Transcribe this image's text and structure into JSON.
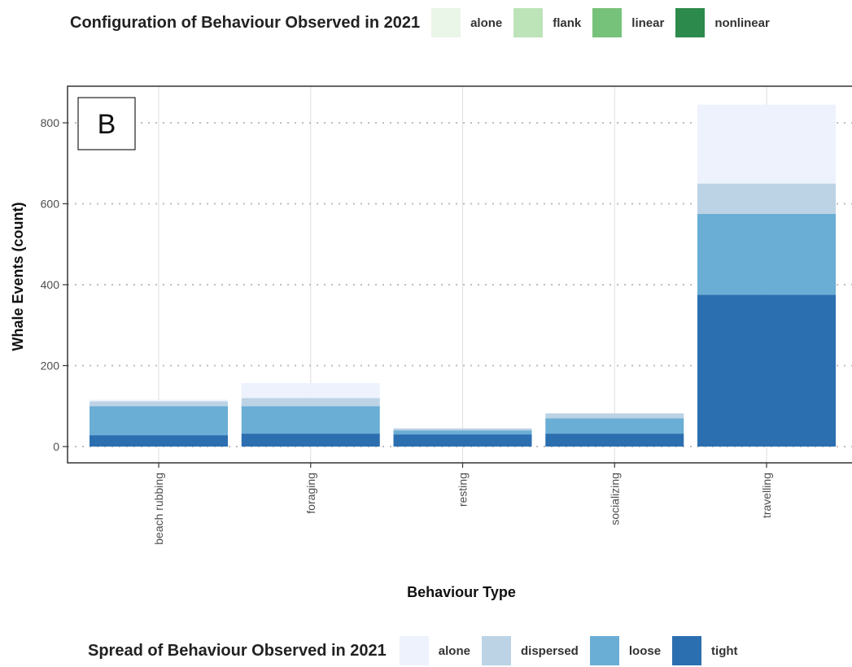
{
  "chart_data": {
    "type": "bar",
    "stacked": true,
    "panel_label": "B",
    "xlabel": "Behaviour Type",
    "ylabel": "Whale Events (count)",
    "categories": [
      "beach rubbing",
      "foraging",
      "resting",
      "socializing",
      "travelling"
    ],
    "ylim": [
      -40,
      885
    ],
    "yticks": [
      0,
      200,
      400,
      600,
      800
    ],
    "grid": true,
    "legend_placement": "bottom",
    "series": [
      {
        "name": "tight",
        "color": "#2b6fb0",
        "values": [
          28,
          32,
          30,
          32,
          375
        ]
      },
      {
        "name": "loose",
        "color": "#6aadd5",
        "values": [
          72,
          68,
          10,
          38,
          200
        ]
      },
      {
        "name": "dispersed",
        "color": "#bcd3e5",
        "values": [
          12,
          20,
          5,
          12,
          75
        ]
      },
      {
        "name": "alone",
        "color": "#edf2fd",
        "values": [
          4,
          37,
          0,
          0,
          195
        ]
      }
    ]
  },
  "legend_config": {
    "title": "Configuration of Behaviour Observed in 2021",
    "items": [
      {
        "label": "alone",
        "color": "#eaf6e7"
      },
      {
        "label": "flank",
        "color": "#bde3b9"
      },
      {
        "label": "linear",
        "color": "#77c27b"
      },
      {
        "label": "nonlinear",
        "color": "#2c8a4c"
      }
    ]
  },
  "legend_spread": {
    "title": "Spread of Behaviour Observed in 2021",
    "items": [
      {
        "label": "alone",
        "color": "#edf2fd"
      },
      {
        "label": "dispersed",
        "color": "#bcd3e5"
      },
      {
        "label": "loose",
        "color": "#6aadd5"
      },
      {
        "label": "tight",
        "color": "#2b6fb0"
      }
    ]
  }
}
